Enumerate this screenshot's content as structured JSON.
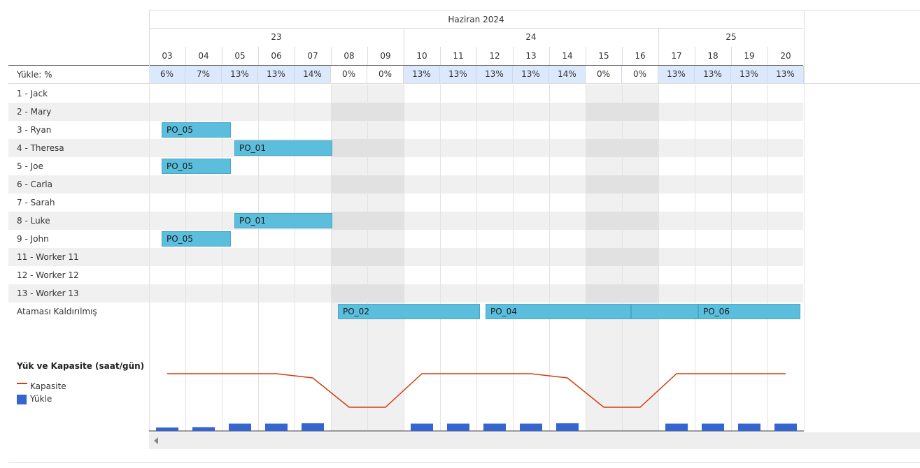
{
  "calendar": {
    "month_label": "Haziran 2024",
    "weeks": [
      "23",
      "24",
      "25"
    ],
    "days": [
      "03",
      "04",
      "05",
      "06",
      "07",
      "08",
      "09",
      "10",
      "11",
      "12",
      "13",
      "14",
      "15",
      "16",
      "17",
      "18",
      "19",
      "20"
    ],
    "weekend_indices": [
      5,
      6,
      12,
      13
    ]
  },
  "load_row": {
    "label": "Yükle: %",
    "values": [
      "6%",
      "7%",
      "13%",
      "13%",
      "14%",
      "0%",
      "0%",
      "13%",
      "13%",
      "13%",
      "13%",
      "14%",
      "0%",
      "0%",
      "13%",
      "13%",
      "13%",
      "13%"
    ]
  },
  "workers": [
    "1 - Jack",
    "2 - Mary",
    "3 - Ryan",
    "4 - Theresa",
    "5 - Joe",
    "6 - Carla",
    "7 - Sarah",
    "8 - Luke",
    "9 - John",
    "11 - Worker 11",
    "12 - Worker 12",
    "13 - Worker 13"
  ],
  "unassigned_label": "Ataması Kaldırılmış",
  "tasks": [
    {
      "label": "PO_05",
      "row": 2,
      "start_day": 0,
      "end_day": 1.9
    },
    {
      "label": "PO_01",
      "row": 3,
      "start_day": 2,
      "end_day": 4.7
    },
    {
      "label": "PO_05",
      "row": 4,
      "start_day": 0,
      "end_day": 1.9
    },
    {
      "label": "PO_01",
      "row": 7,
      "start_day": 2,
      "end_day": 4.7
    },
    {
      "label": "PO_05",
      "row": 8,
      "start_day": 0,
      "end_day": 1.9
    },
    {
      "label": "PO_02",
      "row": 12,
      "start_day": 4.85,
      "end_day": 8.75
    },
    {
      "label": "PO_04",
      "row": 12,
      "start_day": 8.9,
      "end_day": 12.9
    },
    {
      "label": "",
      "row": 12,
      "start_day": 12.9,
      "end_day": 14.75
    },
    {
      "label": "PO_06",
      "row": 12,
      "start_day": 14.75,
      "end_day": 17.55
    }
  ],
  "chart": {
    "title": "Yük ve Kapasite (saat/gün)",
    "legend": {
      "capacity": "Kapasite",
      "load": "Yükle"
    },
    "colors": {
      "capacity": "#d63c0f",
      "load": "#3465d0"
    },
    "capacity": [
      8,
      8,
      8,
      8,
      7,
      0,
      0,
      8,
      8,
      8,
      8,
      7,
      0,
      0,
      8,
      8,
      8,
      8
    ],
    "load": [
      0.5,
      0.55,
      1.05,
      1.05,
      1.1,
      0,
      0,
      1.05,
      1.05,
      1.05,
      1.05,
      1.1,
      0,
      0,
      1.05,
      1.05,
      1.05,
      1.05
    ]
  }
}
